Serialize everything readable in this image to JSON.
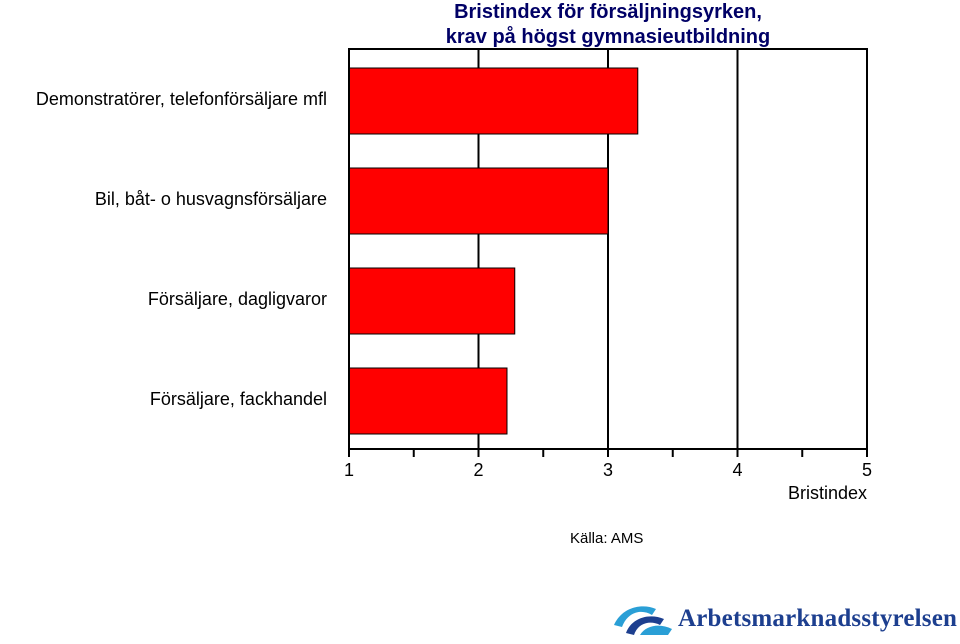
{
  "chart_data": {
    "type": "bar",
    "orientation": "horizontal",
    "title_lines": [
      "Bristindex för försäljningsyrken,",
      "krav på högst gymnasieutbildning"
    ],
    "categories": [
      "Demonstratörer, telefonförsäljare mfl",
      "Bil, båt- o husvagnsförsäljare",
      "Försäljare, dagligvaror",
      "Försäljare, fackhandel"
    ],
    "values": [
      3.23,
      3.0,
      2.28,
      2.22
    ],
    "xlabel": "Bristindex",
    "ylabel": "",
    "xlim": [
      1,
      5
    ],
    "xticks": [
      "1",
      "2",
      "3",
      "4",
      "5"
    ],
    "grid": "vertical",
    "bar_color": "#ff0000"
  },
  "source": "Källa: AMS",
  "logo": {
    "text": "Arbetsmarknadsstyrelsen",
    "color": "#1d3f8f"
  }
}
